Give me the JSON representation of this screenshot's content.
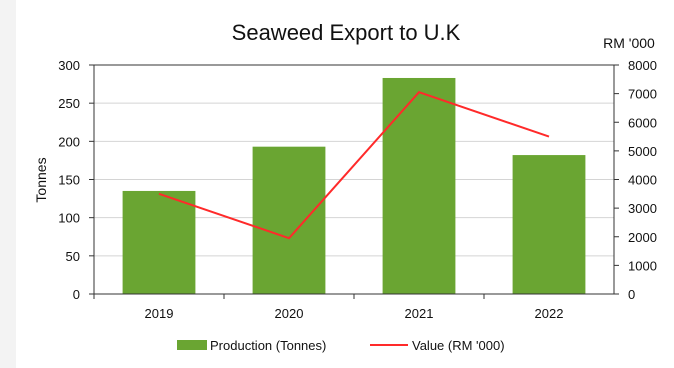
{
  "chart_data": {
    "type": "bar",
    "title": "Seaweed Export to U.K",
    "categories": [
      "2019",
      "2020",
      "2021",
      "2022"
    ],
    "series": [
      {
        "name": "Production (Tonnes)",
        "type": "bar",
        "axis": "left",
        "color": "#6aa532",
        "values": [
          135,
          193,
          283,
          182
        ]
      },
      {
        "name": "Value (RM '000)",
        "type": "line",
        "axis": "right",
        "color": "#ff2a2a",
        "values": [
          3500,
          1950,
          7050,
          5500
        ]
      }
    ],
    "y_left": {
      "label": "Tonnes",
      "range": [
        0,
        300
      ],
      "ticks": [
        "0",
        "50",
        "100",
        "150",
        "200",
        "250",
        "300"
      ]
    },
    "y_right": {
      "label": "RM '000",
      "range": [
        0,
        8000
      ],
      "ticks": [
        "0",
        "1000",
        "2000",
        "3000",
        "4000",
        "5000",
        "6000",
        "7000",
        "8000"
      ]
    },
    "grid": true,
    "legend_position": "bottom"
  }
}
